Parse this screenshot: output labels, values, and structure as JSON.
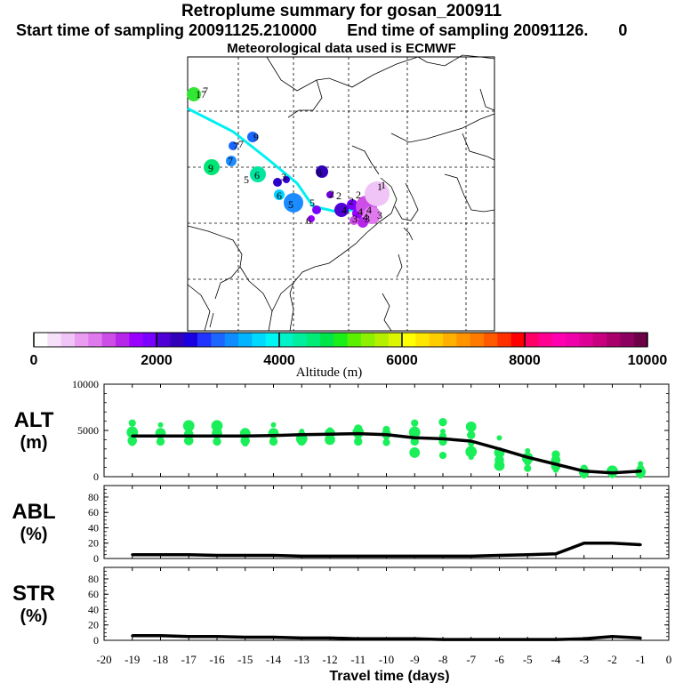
{
  "header": {
    "title": "Retroplume summary for gosan_200911",
    "start_label": "Start time of sampling 20091125.210000",
    "end_label": "End time of sampling 20091126.",
    "end_value": "0",
    "met_label": "Meteorological data used is ECMWF"
  },
  "colorbar": {
    "title": "Altitude (m)",
    "ticks": [
      "0",
      "2000",
      "4000",
      "6000",
      "8000",
      "10000"
    ],
    "colors": [
      "#ffffff",
      "#f6e0fa",
      "#f0c4f6",
      "#ea9cf0",
      "#e079ee",
      "#cc4ee6",
      "#b526e8",
      "#9a00ff",
      "#7a00ff",
      "#4e00d6",
      "#3200b8",
      "#1a00e0",
      "#2233ff",
      "#1a66ff",
      "#0f8cff",
      "#00b4ff",
      "#00d9ff",
      "#00f5f5",
      "#00f2c8",
      "#00ee9e",
      "#00ec76",
      "#00e64a",
      "#1aef1a",
      "#5af000",
      "#8cf000",
      "#b4f000",
      "#dcf500",
      "#ffff00",
      "#ffe600",
      "#ffcc00",
      "#ffb000",
      "#ff9400",
      "#ff7a00",
      "#ff5a00",
      "#ff3000",
      "#ff0000",
      "#ff0066",
      "#ff0090",
      "#ff00b0",
      "#f000a8",
      "#dd0096",
      "#c8007f",
      "#aa006a",
      "#8c0060",
      "#6e0048"
    ]
  },
  "map_labels": [
    "17",
    "7",
    "9",
    "7",
    "7",
    "9",
    "7",
    "6",
    "5",
    "6",
    "5",
    "3",
    "2",
    "8",
    "6",
    "5",
    "4",
    "4",
    "2",
    "2",
    "1",
    "1",
    "3",
    "3",
    "4",
    "4",
    "3",
    "2"
  ],
  "chart_data": [
    {
      "type": "line",
      "name": "ALT",
      "ylabel": "ALT (m)",
      "yticks": [
        "0",
        "5000",
        "10000"
      ],
      "ylim": [
        0,
        10000
      ],
      "x": [
        -19,
        -18,
        -17,
        -16,
        -15,
        -14,
        -13,
        -12,
        -11,
        -10,
        -9,
        -8,
        -7,
        -6,
        -5,
        -4,
        -3,
        -2,
        -1
      ],
      "values": [
        4400,
        4400,
        4400,
        4400,
        4400,
        4450,
        4550,
        4600,
        4650,
        4550,
        4200,
        4100,
        3850,
        3000,
        2100,
        1350,
        600,
        400,
        600
      ]
    },
    {
      "type": "line",
      "name": "ABL",
      "ylabel": "ABL (%)",
      "yticks": [
        "0",
        "20",
        "40",
        "60",
        "80"
      ],
      "ylim": [
        0,
        95
      ],
      "x": [
        -19,
        -18,
        -17,
        -16,
        -15,
        -14,
        -13,
        -12,
        -11,
        -10,
        -9,
        -8,
        -7,
        -6,
        -5,
        -4,
        -3,
        -2,
        -1
      ],
      "values": [
        5,
        5,
        5,
        4,
        4,
        4,
        3,
        3,
        3,
        3,
        3,
        3,
        3,
        4,
        5,
        6,
        20,
        20,
        18
      ]
    },
    {
      "type": "line",
      "name": "STR",
      "ylabel": "STR (%)",
      "yticks": [
        "0",
        "20",
        "40",
        "60",
        "80"
      ],
      "ylim": [
        0,
        95
      ],
      "x": [
        -19,
        -18,
        -17,
        -16,
        -15,
        -14,
        -13,
        -12,
        -11,
        -10,
        -9,
        -8,
        -7,
        -6,
        -5,
        -4,
        -3,
        -2,
        -1
      ],
      "values": [
        6,
        6,
        5,
        5,
        4,
        4,
        3,
        3,
        2,
        2,
        2,
        1,
        1,
        1,
        1,
        1,
        2,
        5,
        3
      ],
      "xlabel": "Travel time (days)",
      "xticks": [
        "-20",
        "-19",
        "-18",
        "-17",
        "-16",
        "-15",
        "-14",
        "-13",
        "-12",
        "-11",
        "-10",
        "-9",
        "-8",
        "-7",
        "-6",
        "-5",
        "-4",
        "-3",
        "-2",
        "-1",
        "0"
      ]
    }
  ],
  "alt_dots": [
    [
      -19,
      5800
    ],
    [
      -19,
      4800
    ],
    [
      -19,
      4300
    ],
    [
      -19,
      3900
    ],
    [
      -19,
      3700
    ],
    [
      -18,
      5600
    ],
    [
      -18,
      4700
    ],
    [
      -18,
      4200
    ],
    [
      -18,
      3800
    ],
    [
      -17,
      5500
    ],
    [
      -17,
      4600
    ],
    [
      -17,
      4200
    ],
    [
      -17,
      3900
    ],
    [
      -16,
      5500
    ],
    [
      -16,
      4700
    ],
    [
      -16,
      4200
    ],
    [
      -16,
      3800
    ],
    [
      -15,
      4700
    ],
    [
      -15,
      4300
    ],
    [
      -15,
      3900
    ],
    [
      -15,
      3600
    ],
    [
      -14,
      5600
    ],
    [
      -14,
      4700
    ],
    [
      -14,
      4200
    ],
    [
      -14,
      3800
    ],
    [
      -13,
      4900
    ],
    [
      -13,
      4500
    ],
    [
      -13,
      4100
    ],
    [
      -13,
      3800
    ],
    [
      -12,
      5000
    ],
    [
      -12,
      4700
    ],
    [
      -12,
      4300
    ],
    [
      -12,
      4000
    ],
    [
      -11,
      5200
    ],
    [
      -11,
      4800
    ],
    [
      -11,
      4300
    ],
    [
      -11,
      3800
    ],
    [
      -10,
      5100
    ],
    [
      -10,
      4600
    ],
    [
      -10,
      4200
    ],
    [
      -10,
      3700
    ],
    [
      -9,
      5800
    ],
    [
      -9,
      4800
    ],
    [
      -9,
      4200
    ],
    [
      -9,
      3800
    ],
    [
      -9,
      2600
    ],
    [
      -8,
      5900
    ],
    [
      -8,
      4900
    ],
    [
      -8,
      4400
    ],
    [
      -8,
      3800
    ],
    [
      -8,
      2300
    ],
    [
      -7,
      5400
    ],
    [
      -7,
      4500
    ],
    [
      -7,
      3600
    ],
    [
      -7,
      2700
    ],
    [
      -7,
      2100
    ],
    [
      -6,
      4200
    ],
    [
      -6,
      2600
    ],
    [
      -6,
      1800
    ],
    [
      -6,
      1200
    ],
    [
      -5,
      2800
    ],
    [
      -5,
      2000
    ],
    [
      -5,
      1600
    ],
    [
      -5,
      900
    ],
    [
      -4,
      2400
    ],
    [
      -4,
      1800
    ],
    [
      -4,
      1100
    ],
    [
      -4,
      700
    ],
    [
      -3,
      900
    ],
    [
      -3,
      500
    ],
    [
      -3,
      200
    ],
    [
      -2,
      600
    ],
    [
      -2,
      300
    ],
    [
      -1,
      1400
    ],
    [
      -1,
      900
    ],
    [
      -1,
      500
    ],
    [
      -1,
      200
    ]
  ]
}
